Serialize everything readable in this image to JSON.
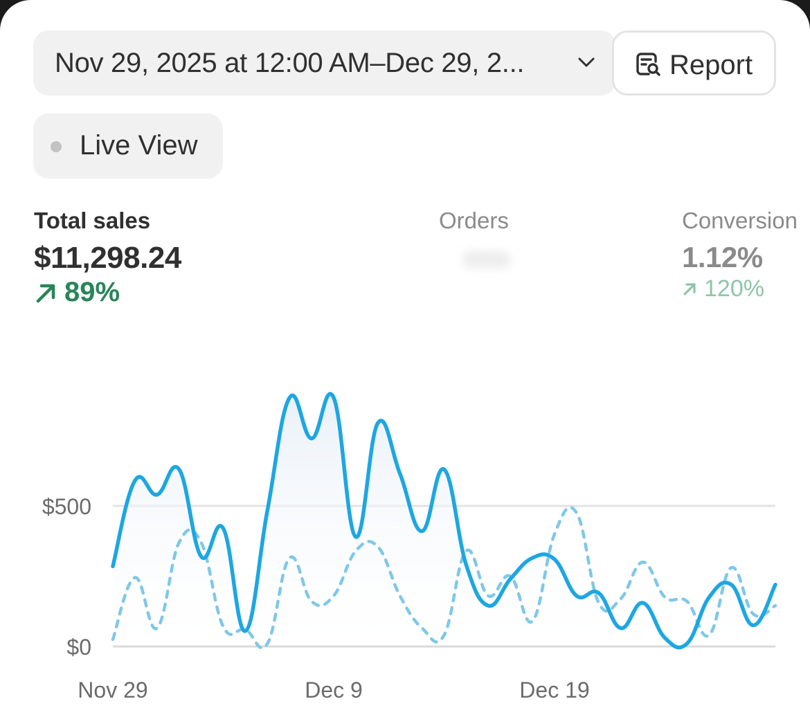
{
  "header": {
    "date_range_label": "Nov 29, 2025 at 12:00 AM–Dec 29, 2...",
    "report_label": "Report",
    "live_view_label": "Live View"
  },
  "metrics": {
    "total_sales": {
      "name": "Total sales",
      "value": "$11,298.24",
      "change": "89%"
    },
    "orders": {
      "name": "Orders"
    },
    "conversion": {
      "name": "Conversion",
      "value": "1.12%",
      "change": "120%"
    }
  },
  "colors": {
    "current_line": "#1da7e2",
    "previous_line": "#7fc8e8",
    "positive": "#29845a",
    "positive_muted": "#8fc4a9"
  },
  "chart_data": {
    "type": "line",
    "title": "",
    "xlabel": "",
    "ylabel": "",
    "ylim": [
      0,
      1000
    ],
    "y_ticks": [
      {
        "value": 0,
        "label": "$0"
      },
      {
        "value": 500,
        "label": "$500"
      }
    ],
    "x_ticks": [
      {
        "index": 0,
        "label": "Nov 29"
      },
      {
        "index": 10,
        "label": "Dec 9"
      },
      {
        "index": 20,
        "label": "Dec 19"
      }
    ],
    "x": [
      "Nov 29",
      "Nov 30",
      "Dec 1",
      "Dec 2",
      "Dec 3",
      "Dec 4",
      "Dec 5",
      "Dec 6",
      "Dec 7",
      "Dec 8",
      "Dec 9",
      "Dec 10",
      "Dec 11",
      "Dec 12",
      "Dec 13",
      "Dec 14",
      "Dec 15",
      "Dec 16",
      "Dec 17",
      "Dec 18",
      "Dec 19",
      "Dec 20",
      "Dec 21",
      "Dec 22",
      "Dec 23",
      "Dec 24",
      "Dec 25",
      "Dec 26",
      "Dec 27",
      "Dec 28",
      "Dec 29"
    ],
    "grid": true,
    "legend": "none",
    "series": [
      {
        "style": "solid",
        "values": [
          285,
          590,
          540,
          630,
          320,
          420,
          55,
          485,
          885,
          740,
          885,
          390,
          795,
          615,
          410,
          630,
          290,
          145,
          240,
          315,
          310,
          180,
          190,
          65,
          155,
          30,
          10,
          175,
          220,
          75,
          220
        ]
      },
      {
        "style": "dashed",
        "values": [
          25,
          245,
          65,
          370,
          370,
          70,
          60,
          10,
          315,
          160,
          180,
          340,
          355,
          180,
          65,
          40,
          340,
          180,
          250,
          90,
          400,
          475,
          155,
          170,
          300,
          175,
          160,
          40,
          280,
          115,
          145
        ]
      }
    ]
  }
}
